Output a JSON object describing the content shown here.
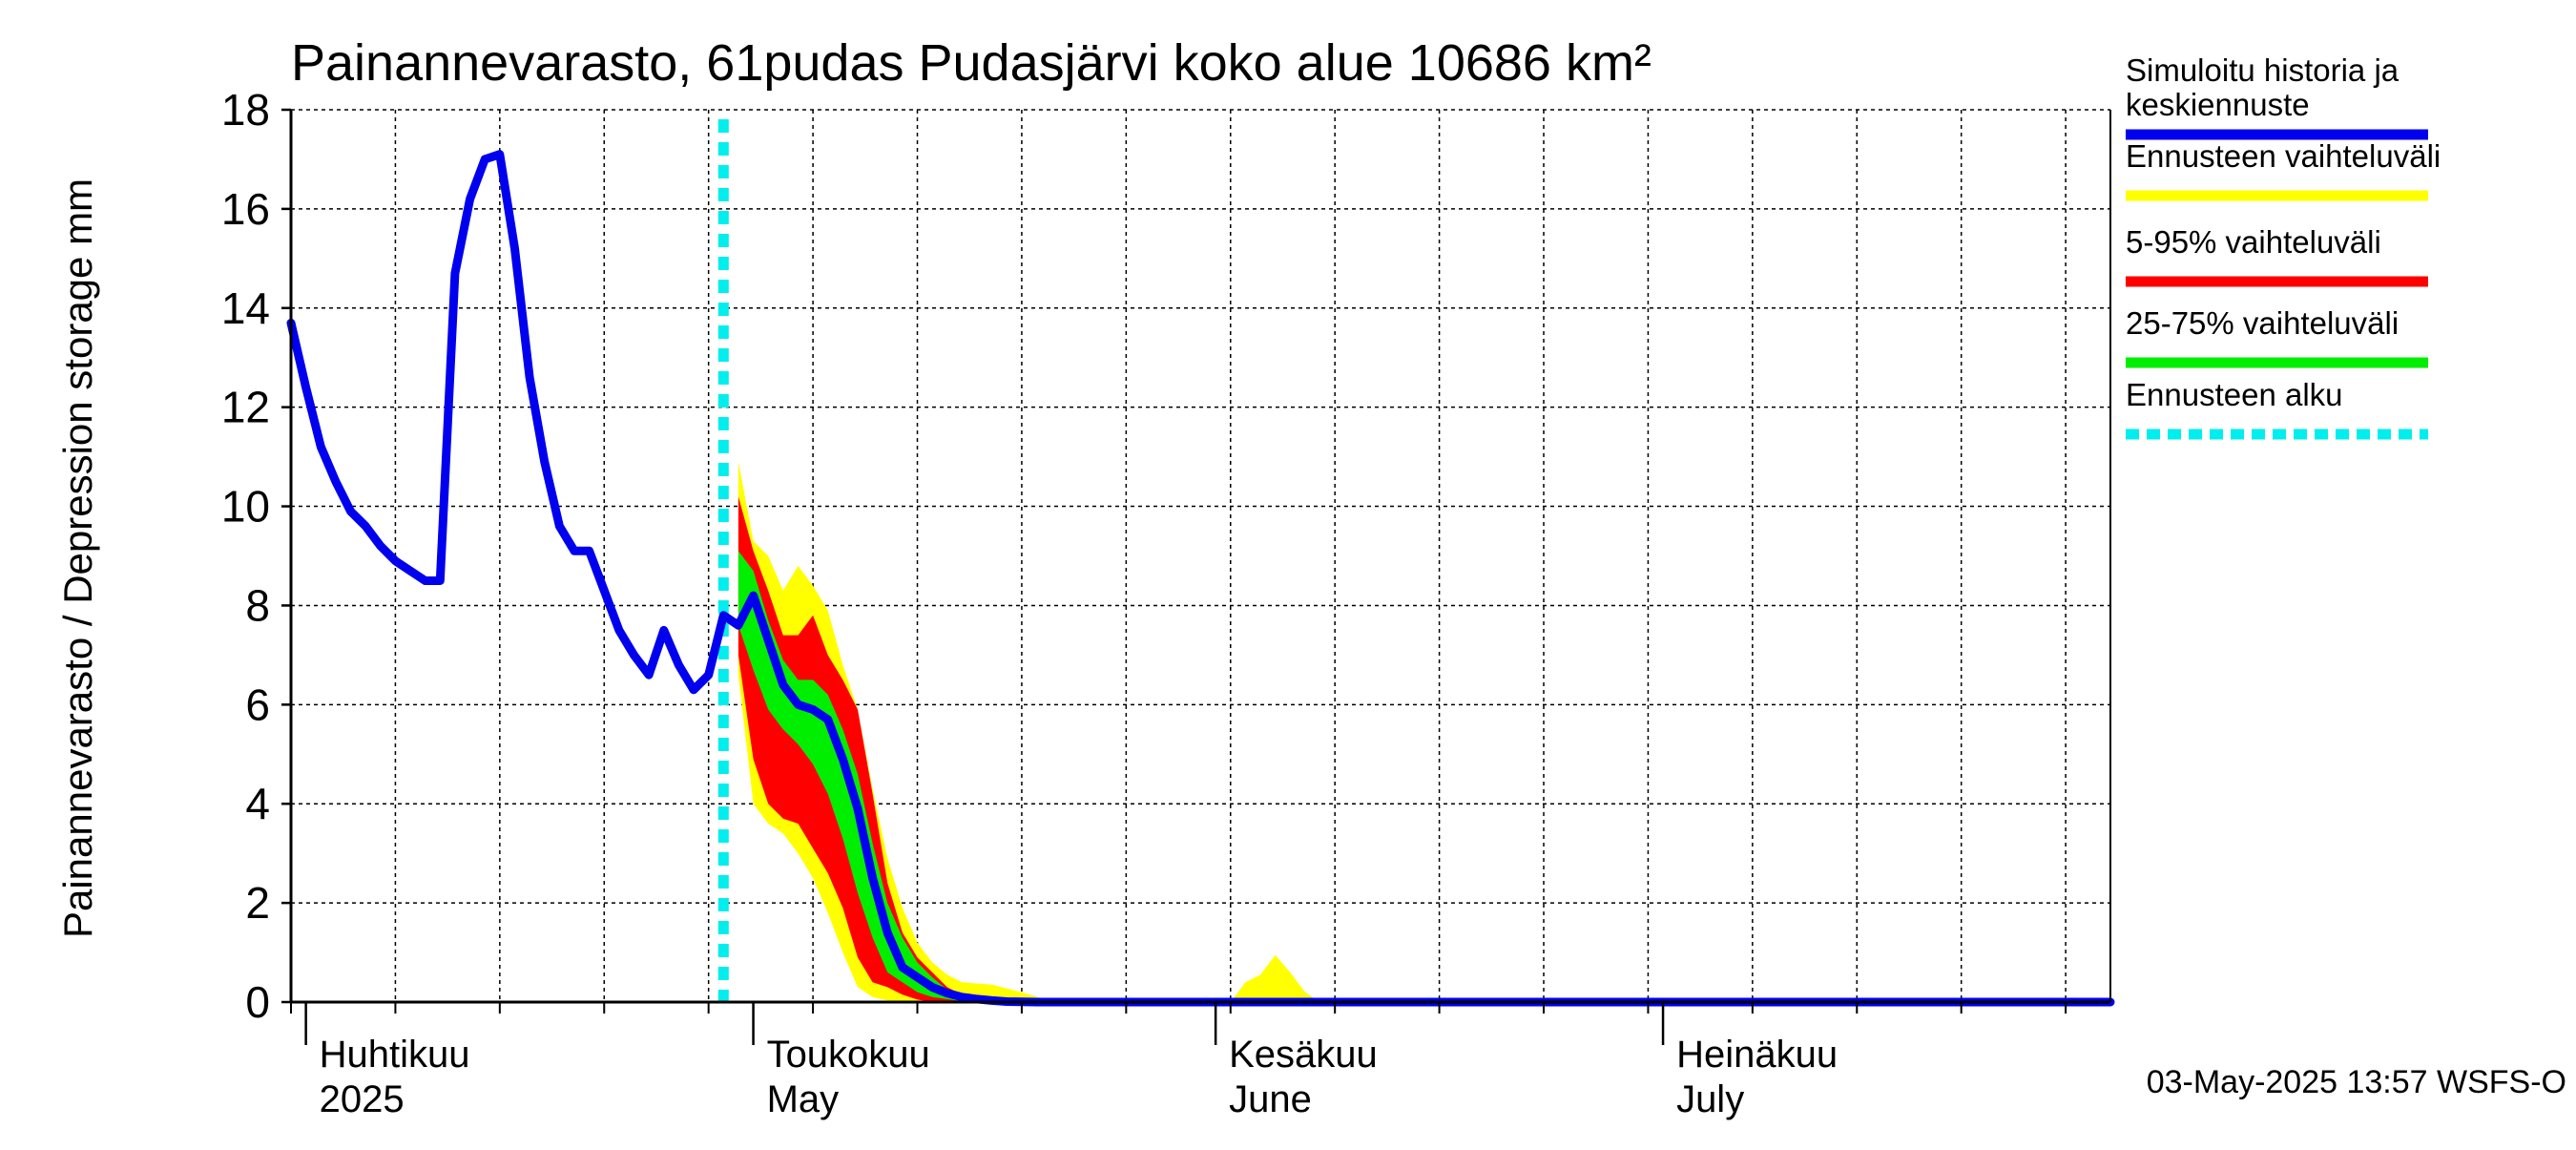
{
  "chart_data": {
    "type": "area",
    "title": "Painannevarasto, 61pudas Pudasjärvi koko alue 10686 km²",
    "ylabel": "Painannevarasto / Depression storage    mm",
    "ylim": [
      0,
      18
    ],
    "xlim": [
      "2025-03-31",
      "2025-07-31"
    ],
    "yticks": [
      0,
      2,
      4,
      6,
      8,
      10,
      12,
      14,
      16,
      18
    ],
    "grid": true,
    "legend_placement": "right",
    "forecast_start": "2025-04-29",
    "months": [
      {
        "date": "2025-04-01",
        "label_fi": "Huhtikuu",
        "label_en": "2025"
      },
      {
        "date": "2025-05-01",
        "label_fi": "Toukokuu",
        "label_en": "May"
      },
      {
        "date": "2025-06-01",
        "label_fi": "Kesäkuu",
        "label_en": "June"
      },
      {
        "date": "2025-07-01",
        "label_fi": "Heinäkuu",
        "label_en": "July"
      }
    ],
    "legend": [
      {
        "label_line1": "Simuloitu historia ja",
        "label_line2": "keskiennuste",
        "color": "#0000ee",
        "style": "solid"
      },
      {
        "label_line1": "Ennusteen vaihteluväli",
        "label_line2": "",
        "color": "#ffff00",
        "style": "solid"
      },
      {
        "label_line1": "5-95% vaihteluväli",
        "label_line2": "",
        "color": "#ff0000",
        "style": "solid"
      },
      {
        "label_line1": "25-75% vaihteluväli",
        "label_line2": "",
        "color": "#00ee00",
        "style": "solid"
      },
      {
        "label_line1": "Ennusteen alku",
        "label_line2": "",
        "color": "#00eeee",
        "style": "dotted"
      }
    ],
    "footer": "03-May-2025 13:57 WSFS-O",
    "series": [
      {
        "name": "Simuloitu historia ja keskiennuste",
        "points": [
          [
            "2025-03-31",
            13.7
          ],
          [
            "2025-04-01",
            12.4
          ],
          [
            "2025-04-02",
            11.2
          ],
          [
            "2025-04-03",
            10.5
          ],
          [
            "2025-04-04",
            9.9
          ],
          [
            "2025-04-05",
            9.6
          ],
          [
            "2025-04-06",
            9.2
          ],
          [
            "2025-04-07",
            8.9
          ],
          [
            "2025-04-08",
            8.7
          ],
          [
            "2025-04-09",
            8.5
          ],
          [
            "2025-04-10",
            8.5
          ],
          [
            "2025-04-11",
            14.7
          ],
          [
            "2025-04-12",
            16.2
          ],
          [
            "2025-04-13",
            17.0
          ],
          [
            "2025-04-14",
            17.1
          ],
          [
            "2025-04-15",
            15.2
          ],
          [
            "2025-04-16",
            12.6
          ],
          [
            "2025-04-17",
            10.9
          ],
          [
            "2025-04-18",
            9.6
          ],
          [
            "2025-04-19",
            9.1
          ],
          [
            "2025-04-20",
            9.1
          ],
          [
            "2025-04-21",
            8.3
          ],
          [
            "2025-04-22",
            7.5
          ],
          [
            "2025-04-23",
            7.0
          ],
          [
            "2025-04-24",
            6.6
          ],
          [
            "2025-04-25",
            7.5
          ],
          [
            "2025-04-26",
            6.8
          ],
          [
            "2025-04-27",
            6.3
          ],
          [
            "2025-04-28",
            6.6
          ],
          [
            "2025-04-29",
            7.8
          ],
          [
            "2025-04-30",
            7.6
          ],
          [
            "2025-05-01",
            8.2
          ],
          [
            "2025-05-02",
            7.3
          ],
          [
            "2025-05-03",
            6.4
          ],
          [
            "2025-05-04",
            6.0
          ],
          [
            "2025-05-05",
            5.9
          ],
          [
            "2025-05-06",
            5.7
          ],
          [
            "2025-05-07",
            4.9
          ],
          [
            "2025-05-08",
            3.9
          ],
          [
            "2025-05-09",
            2.5
          ],
          [
            "2025-05-10",
            1.4
          ],
          [
            "2025-05-11",
            0.7
          ],
          [
            "2025-05-12",
            0.5
          ],
          [
            "2025-05-13",
            0.3
          ],
          [
            "2025-05-14",
            0.18
          ],
          [
            "2025-05-15",
            0.1
          ],
          [
            "2025-05-16",
            0.06
          ],
          [
            "2025-05-17",
            0.03
          ],
          [
            "2025-05-18",
            0.01
          ],
          [
            "2025-05-20",
            0
          ],
          [
            "2025-07-31",
            0
          ]
        ]
      }
    ],
    "bands": [
      {
        "name": "Ennusteen vaihteluväli",
        "color": "#ffff00",
        "upper": [
          [
            "2025-04-30",
            10.9
          ],
          [
            "2025-05-01",
            9.3
          ],
          [
            "2025-05-02",
            9.0
          ],
          [
            "2025-05-03",
            8.3
          ],
          [
            "2025-05-04",
            8.8
          ],
          [
            "2025-05-05",
            8.4
          ],
          [
            "2025-05-06",
            7.9
          ],
          [
            "2025-05-07",
            6.8
          ],
          [
            "2025-05-08",
            5.9
          ],
          [
            "2025-05-09",
            4.3
          ],
          [
            "2025-05-10",
            2.9
          ],
          [
            "2025-05-11",
            1.9
          ],
          [
            "2025-05-12",
            1.2
          ],
          [
            "2025-05-13",
            0.8
          ],
          [
            "2025-05-14",
            0.55
          ],
          [
            "2025-05-15",
            0.4
          ],
          [
            "2025-05-17",
            0.35
          ],
          [
            "2025-05-19",
            0.2
          ],
          [
            "2025-05-21",
            0.02
          ],
          [
            "2025-06-02",
            0
          ],
          [
            "2025-06-03",
            0.4
          ],
          [
            "2025-06-04",
            0.55
          ],
          [
            "2025-06-05",
            0.95
          ],
          [
            "2025-06-06",
            0.6
          ],
          [
            "2025-06-07",
            0.2
          ],
          [
            "2025-06-08",
            0
          ],
          [
            "2025-07-31",
            0
          ]
        ],
        "lower": [
          [
            "2025-04-30",
            6.6
          ],
          [
            "2025-05-01",
            4.0
          ],
          [
            "2025-05-02",
            3.6
          ],
          [
            "2025-05-03",
            3.4
          ],
          [
            "2025-05-04",
            3.0
          ],
          [
            "2025-05-05",
            2.5
          ],
          [
            "2025-05-06",
            1.8
          ],
          [
            "2025-05-07",
            1.0
          ],
          [
            "2025-05-08",
            0.3
          ],
          [
            "2025-05-09",
            0.1
          ],
          [
            "2025-05-10",
            0.03
          ],
          [
            "2025-05-11",
            0
          ],
          [
            "2025-07-31",
            0
          ]
        ]
      },
      {
        "name": "5-95% vaihteluväli",
        "color": "#ff0000",
        "upper": [
          [
            "2025-04-30",
            10.2
          ],
          [
            "2025-05-01",
            9.1
          ],
          [
            "2025-05-02",
            8.3
          ],
          [
            "2025-05-03",
            7.4
          ],
          [
            "2025-05-04",
            7.4
          ],
          [
            "2025-05-05",
            7.8
          ],
          [
            "2025-05-06",
            7.0
          ],
          [
            "2025-05-07",
            6.5
          ],
          [
            "2025-05-08",
            5.9
          ],
          [
            "2025-05-09",
            4.2
          ],
          [
            "2025-05-10",
            2.4
          ],
          [
            "2025-05-11",
            1.4
          ],
          [
            "2025-05-12",
            0.9
          ],
          [
            "2025-05-13",
            0.6
          ],
          [
            "2025-05-14",
            0.3
          ],
          [
            "2025-05-15",
            0.15
          ],
          [
            "2025-05-17",
            0.05
          ],
          [
            "2025-05-19",
            0
          ],
          [
            "2025-07-31",
            0
          ]
        ],
        "lower": [
          [
            "2025-04-30",
            7.0
          ],
          [
            "2025-05-01",
            4.9
          ],
          [
            "2025-05-02",
            4.0
          ],
          [
            "2025-05-03",
            3.7
          ],
          [
            "2025-05-04",
            3.6
          ],
          [
            "2025-05-05",
            3.1
          ],
          [
            "2025-05-06",
            2.6
          ],
          [
            "2025-05-07",
            1.9
          ],
          [
            "2025-05-08",
            0.9
          ],
          [
            "2025-05-09",
            0.4
          ],
          [
            "2025-05-10",
            0.3
          ],
          [
            "2025-05-11",
            0.15
          ],
          [
            "2025-05-12",
            0.05
          ],
          [
            "2025-05-13",
            0
          ],
          [
            "2025-07-31",
            0
          ]
        ]
      },
      {
        "name": "25-75% vaihteluväli",
        "color": "#00ee00",
        "upper": [
          [
            "2025-04-30",
            9.1
          ],
          [
            "2025-05-01",
            8.7
          ],
          [
            "2025-05-02",
            7.7
          ],
          [
            "2025-05-03",
            6.9
          ],
          [
            "2025-05-04",
            6.5
          ],
          [
            "2025-05-05",
            6.5
          ],
          [
            "2025-05-06",
            6.2
          ],
          [
            "2025-05-07",
            5.5
          ],
          [
            "2025-05-08",
            4.6
          ],
          [
            "2025-05-09",
            3.2
          ],
          [
            "2025-05-10",
            2.0
          ],
          [
            "2025-05-11",
            1.3
          ],
          [
            "2025-05-12",
            0.8
          ],
          [
            "2025-05-13",
            0.5
          ],
          [
            "2025-05-14",
            0.25
          ],
          [
            "2025-05-15",
            0.1
          ],
          [
            "2025-05-17",
            0.03
          ],
          [
            "2025-05-18",
            0
          ],
          [
            "2025-07-31",
            0
          ]
        ],
        "lower": [
          [
            "2025-04-30",
            7.6
          ],
          [
            "2025-05-01",
            6.7
          ],
          [
            "2025-05-02",
            5.9
          ],
          [
            "2025-05-03",
            5.5
          ],
          [
            "2025-05-04",
            5.2
          ],
          [
            "2025-05-05",
            4.8
          ],
          [
            "2025-05-06",
            4.2
          ],
          [
            "2025-05-07",
            3.3
          ],
          [
            "2025-05-08",
            2.2
          ],
          [
            "2025-05-09",
            1.3
          ],
          [
            "2025-05-10",
            0.6
          ],
          [
            "2025-05-11",
            0.4
          ],
          [
            "2025-05-12",
            0.2
          ],
          [
            "2025-05-13",
            0.1
          ],
          [
            "2025-05-15",
            0.02
          ],
          [
            "2025-05-16",
            0
          ],
          [
            "2025-07-31",
            0
          ]
        ]
      }
    ]
  }
}
